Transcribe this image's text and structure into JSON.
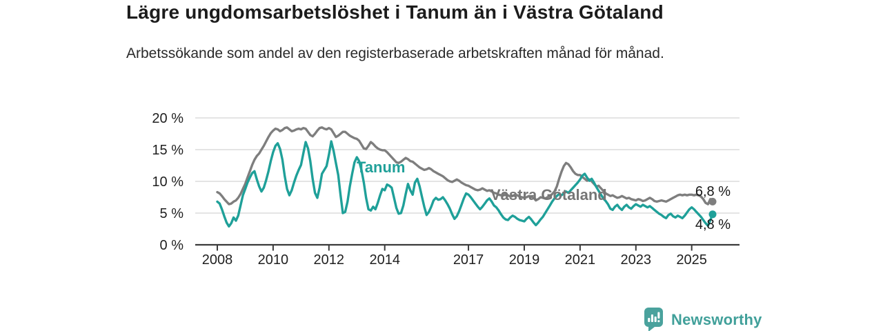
{
  "chart_data": {
    "type": "line",
    "title": "Lägre ungdomsarbetslöshet i Tanum än i Västra Götaland",
    "subtitle": "Arbetssökande som andel av den registerbaserade arbetskraften månad för månad.",
    "unit": "%",
    "frequency": "monthly",
    "x_monthly_start": "2008-01",
    "x_monthly_end": "2025-10",
    "ylim": [
      0,
      20
    ],
    "grid": "horizontal",
    "y_tick_values": [
      0,
      5,
      10,
      15,
      20
    ],
    "y_tick_labels": [
      "0 %",
      "5 %",
      "10 %",
      "15 %",
      "20 %"
    ],
    "x_tick_years": [
      2008,
      2010,
      2012,
      2014,
      2017,
      2019,
      2021,
      2023,
      2025
    ],
    "legend_position": "inline-labels",
    "series": [
      {
        "name": "Tanum",
        "slug": "tanum",
        "color": "#1FA099",
        "end_label": "4,8 %",
        "end_value": 4.8,
        "values": [
          6.8,
          6.5,
          5.6,
          4.5,
          3.5,
          2.9,
          3.4,
          4.3,
          3.8,
          4.6,
          6.2,
          7.8,
          8.8,
          9.8,
          10.6,
          11.3,
          11.6,
          10.3,
          9.2,
          8.4,
          9.0,
          10.2,
          11.6,
          13.2,
          14.6,
          15.6,
          16.0,
          15.1,
          13.4,
          10.8,
          8.8,
          7.8,
          8.6,
          9.8,
          10.9,
          11.8,
          12.6,
          14.4,
          16.2,
          15.2,
          13.2,
          10.4,
          8.2,
          7.4,
          9.0,
          11.2,
          11.8,
          12.4,
          14.2,
          16.3,
          14.8,
          12.9,
          11.0,
          7.8,
          5.0,
          5.2,
          6.8,
          9.2,
          11.2,
          13.0,
          13.8,
          13.2,
          11.8,
          9.8,
          7.4,
          5.6,
          5.4,
          6.0,
          5.6,
          6.6,
          7.8,
          8.8,
          8.6,
          9.5,
          9.3,
          9.0,
          7.4,
          5.8,
          4.9,
          5.0,
          6.2,
          8.0,
          9.6,
          8.6,
          7.9,
          9.8,
          10.4,
          9.2,
          7.6,
          6.0,
          4.7,
          5.2,
          6.0,
          7.0,
          7.4,
          7.1,
          7.2,
          7.5,
          7.0,
          6.4,
          5.7,
          4.8,
          4.1,
          4.5,
          5.3,
          6.3,
          7.3,
          8.1,
          7.9,
          7.5,
          7.0,
          6.5,
          6.0,
          5.6,
          6.0,
          6.5,
          7.0,
          7.3,
          6.8,
          6.2,
          5.9,
          5.4,
          4.8,
          4.3,
          4.0,
          3.9,
          4.3,
          4.6,
          4.4,
          4.1,
          3.9,
          3.8,
          3.7,
          4.1,
          4.4,
          4.0,
          3.5,
          3.1,
          3.5,
          4.0,
          4.4,
          5.0,
          5.6,
          6.2,
          6.8,
          7.3,
          7.7,
          8.0,
          7.8,
          8.1,
          8.4,
          8.2,
          8.6,
          9.0,
          9.4,
          9.8,
          10.3,
          10.9,
          11.2,
          10.6,
          10.1,
          10.4,
          9.8,
          9.1,
          8.5,
          7.9,
          7.3,
          6.9,
          6.4,
          5.7,
          5.5,
          6.0,
          6.3,
          5.8,
          5.5,
          6.0,
          6.3,
          5.9,
          5.7,
          6.1,
          6.4,
          6.2,
          6.0,
          6.3,
          6.1,
          5.9,
          6.1,
          5.8,
          5.5,
          5.2,
          4.9,
          4.7,
          4.4,
          4.2,
          4.7,
          4.9,
          4.5,
          4.3,
          4.6,
          4.4,
          4.2,
          4.6,
          5.1,
          5.6,
          5.9,
          5.6,
          5.2,
          4.8,
          4.4,
          3.9,
          3.4,
          3.0,
          3.9,
          4.8
        ]
      },
      {
        "name": "Västra Götaland",
        "slug": "vastra-gotaland",
        "color": "#7E7E7E",
        "end_label": "6,8 %",
        "end_value": 6.8,
        "values": [
          8.3,
          8.1,
          7.7,
          7.2,
          6.8,
          6.4,
          6.5,
          6.8,
          7.0,
          7.4,
          8.0,
          8.8,
          9.6,
          10.6,
          11.6,
          12.6,
          13.4,
          14.0,
          14.4,
          15.0,
          15.6,
          16.3,
          17.0,
          17.6,
          18.0,
          18.3,
          18.2,
          17.9,
          18.1,
          18.4,
          18.5,
          18.2,
          17.9,
          18.0,
          18.2,
          18.3,
          18.2,
          18.4,
          18.3,
          17.8,
          17.3,
          17.1,
          17.5,
          18.0,
          18.4,
          18.5,
          18.3,
          18.2,
          18.4,
          18.2,
          17.6,
          17.0,
          17.2,
          17.5,
          17.8,
          17.8,
          17.5,
          17.2,
          17.0,
          16.8,
          16.7,
          16.4,
          15.8,
          15.2,
          15.1,
          15.6,
          16.2,
          15.9,
          15.5,
          15.2,
          15.0,
          14.9,
          14.9,
          14.6,
          14.2,
          13.8,
          13.4,
          13.0,
          12.9,
          13.1,
          13.4,
          13.7,
          13.5,
          13.2,
          13.1,
          12.8,
          12.5,
          12.2,
          12.0,
          11.8,
          11.9,
          12.1,
          11.9,
          11.6,
          11.4,
          11.2,
          11.0,
          10.8,
          10.5,
          10.2,
          10.0,
          9.9,
          10.1,
          10.3,
          10.1,
          9.8,
          9.6,
          9.4,
          9.3,
          9.1,
          8.9,
          8.7,
          8.6,
          8.7,
          8.9,
          8.7,
          8.5,
          8.6,
          8.4,
          8.2,
          8.1,
          7.9,
          7.8,
          7.9,
          8.0,
          7.8,
          7.6,
          7.7,
          7.9,
          7.8,
          7.6,
          7.5,
          7.4,
          7.5,
          7.7,
          7.6,
          7.4,
          7.0,
          7.2,
          7.5,
          7.4,
          7.3,
          7.5,
          7.7,
          8.0,
          8.4,
          9.2,
          10.4,
          11.5,
          12.4,
          12.9,
          12.7,
          12.2,
          11.6,
          11.2,
          11.0,
          11.0,
          10.7,
          10.4,
          10.1,
          10.3,
          10.0,
          9.6,
          9.2,
          9.3,
          8.9,
          8.5,
          8.1,
          7.9,
          7.7,
          7.8,
          7.6,
          7.4,
          7.5,
          7.7,
          7.5,
          7.3,
          7.4,
          7.2,
          7.1,
          7.0,
          7.2,
          7.1,
          6.9,
          7.0,
          7.2,
          7.4,
          7.2,
          6.9,
          6.8,
          6.9,
          7.0,
          6.9,
          6.8,
          7.0,
          7.2,
          7.4,
          7.6,
          7.8,
          7.9,
          7.8,
          7.9,
          7.8,
          7.9,
          7.9,
          7.8,
          7.9,
          7.8,
          7.6,
          7.2,
          6.6,
          6.4,
          7.2,
          6.8
        ]
      }
    ],
    "colors": {
      "tanum_teal": "#1FA099",
      "vastra_gotaland_gray": "#7E7E7E",
      "gridline": "#DCDCDC",
      "axis": "#3A3A3A",
      "text": "#1C1C1C"
    }
  },
  "branding": {
    "name": "Newsworthy",
    "icon": "bar-chart-speech-bubble-icon",
    "color": "#41A09A"
  }
}
